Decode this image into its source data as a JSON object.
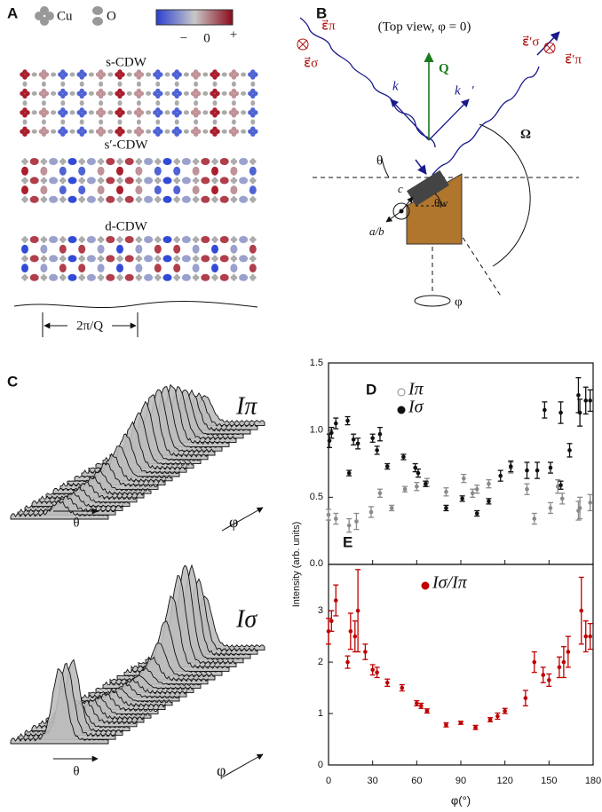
{
  "panel_a": {
    "label": "A",
    "legend": [
      "Cu",
      "O"
    ],
    "colorbar": [
      "−",
      "0",
      "+"
    ],
    "rows": [
      "s-CDW",
      "s′-CDW",
      "d-CDW"
    ],
    "period": "2π/Q"
  },
  "panel_b": {
    "label": "B",
    "note": "(Top view, φ = 0)",
    "e_pi": "ε⃗π",
    "e_sigma": "ε⃗σ",
    "k": "k⃗",
    "q": "Q⃗",
    "k_out": "k⃗′",
    "e_sigma_out": "ε⃗′σ",
    "e_pi_out": "ε⃗′π",
    "theta": "θ",
    "theta_w": "θw",
    "omega": "Ω",
    "c": "c",
    "ab": "a/b",
    "phi": "φ"
  },
  "panel_c": {
    "label": "C",
    "plots": [
      {
        "title": "Iπ",
        "x": "θ",
        "y": "φ"
      },
      {
        "title": "Iσ",
        "x": "θ",
        "y": "φ"
      }
    ]
  },
  "chart_data": [
    {
      "type": "scatter",
      "label": "D",
      "ylabel": "Intensity (arb. units)",
      "xlim": [
        0,
        180
      ],
      "xticks": [
        0,
        30,
        60,
        90,
        120,
        150,
        180
      ],
      "ylim": [
        0,
        1.5
      ],
      "yticks": [
        {
          "value": 0,
          "label": "0.0"
        },
        0.5,
        {
          "value": 1,
          "label": "1.0"
        },
        1.5
      ],
      "series": [
        {
          "name": "Iπ",
          "color": "#8a8a8a",
          "marker": "open",
          "x": [
            0,
            5,
            14,
            19,
            29,
            35,
            43,
            52,
            60,
            67,
            80,
            92,
            98,
            101,
            109,
            124,
            135,
            140,
            151,
            156,
            159,
            170,
            171,
            178
          ],
          "values": [
            0.37,
            0.34,
            0.29,
            0.32,
            0.39,
            0.53,
            0.42,
            0.56,
            0.58,
            0.61,
            0.54,
            0.64,
            0.53,
            0.56,
            0.6,
            0.72,
            0.56,
            0.34,
            0.42,
            0.58,
            0.49,
            0.4,
            0.42,
            0.46
          ],
          "errors": [
            0.04,
            0.04,
            0.05,
            0.06,
            0.04,
            0.03,
            0.02,
            0.02,
            0.03,
            0.03,
            0.03,
            0.03,
            0.03,
            0.03,
            0.03,
            0.04,
            0.04,
            0.04,
            0.04,
            0.05,
            0.04,
            0.07,
            0.08,
            0.06
          ]
        },
        {
          "name": "Iσ",
          "color": "#111111",
          "marker": "filled",
          "x": [
            0.6,
            2,
            5,
            13,
            14,
            17,
            20,
            30,
            33,
            35,
            40,
            51,
            59,
            61,
            66,
            80,
            91,
            101,
            109,
            117,
            124,
            135,
            142,
            147,
            151,
            158,
            158,
            164,
            170,
            171,
            175,
            178
          ],
          "values": [
            0.92,
            0.98,
            1.05,
            1.07,
            0.68,
            0.93,
            0.9,
            0.94,
            0.85,
            0.97,
            0.73,
            0.8,
            0.72,
            0.68,
            0.6,
            0.42,
            0.49,
            0.38,
            0.47,
            0.66,
            0.73,
            0.7,
            0.7,
            1.15,
            0.72,
            0.59,
            1.13,
            0.85,
            1.26,
            1.13,
            1.22,
            1.22
          ],
          "errors": [
            0.05,
            0.04,
            0.04,
            0.03,
            0.02,
            0.04,
            0.04,
            0.03,
            0.03,
            0.05,
            0.02,
            0.02,
            0.03,
            0.03,
            0.02,
            0.02,
            0.02,
            0.02,
            0.02,
            0.04,
            0.04,
            0.06,
            0.06,
            0.06,
            0.04,
            0.03,
            0.08,
            0.05,
            0.13,
            0.1,
            0.1,
            0.08
          ]
        }
      ]
    },
    {
      "type": "scatter",
      "label": "E",
      "xlabel": "φ(°)",
      "xlim": [
        0,
        180
      ],
      "xticks": [
        0,
        30,
        60,
        90,
        120,
        150,
        180
      ],
      "ylim": [
        0,
        3.9
      ],
      "yticks": [
        0,
        1,
        2,
        3
      ],
      "series": [
        {
          "name": "Iσ/Iπ",
          "color": "#c00000",
          "marker": "filled",
          "x": [
            0,
            2,
            5,
            13,
            15,
            18,
            20,
            25,
            30,
            33,
            40,
            50,
            60,
            63,
            67,
            80,
            90,
            100,
            110,
            115,
            120,
            134,
            140,
            146,
            150,
            157,
            160,
            163,
            172,
            175,
            178
          ],
          "values": [
            2.6,
            2.8,
            3.2,
            2.0,
            2.6,
            2.5,
            3.0,
            2.2,
            1.85,
            1.8,
            1.6,
            1.5,
            1.2,
            1.15,
            1.05,
            0.78,
            0.82,
            0.73,
            0.88,
            0.95,
            1.05,
            1.3,
            2.0,
            1.75,
            1.65,
            1.9,
            2.0,
            2.2,
            3.0,
            2.5,
            2.5
          ],
          "errors": [
            0.25,
            0.2,
            0.3,
            0.12,
            0.35,
            0.3,
            0.8,
            0.15,
            0.1,
            0.1,
            0.07,
            0.06,
            0.05,
            0.05,
            0.04,
            0.04,
            0.03,
            0.04,
            0.04,
            0.06,
            0.05,
            0.15,
            0.2,
            0.15,
            0.12,
            0.2,
            0.3,
            0.3,
            0.65,
            0.3,
            0.25
          ]
        }
      ]
    }
  ]
}
